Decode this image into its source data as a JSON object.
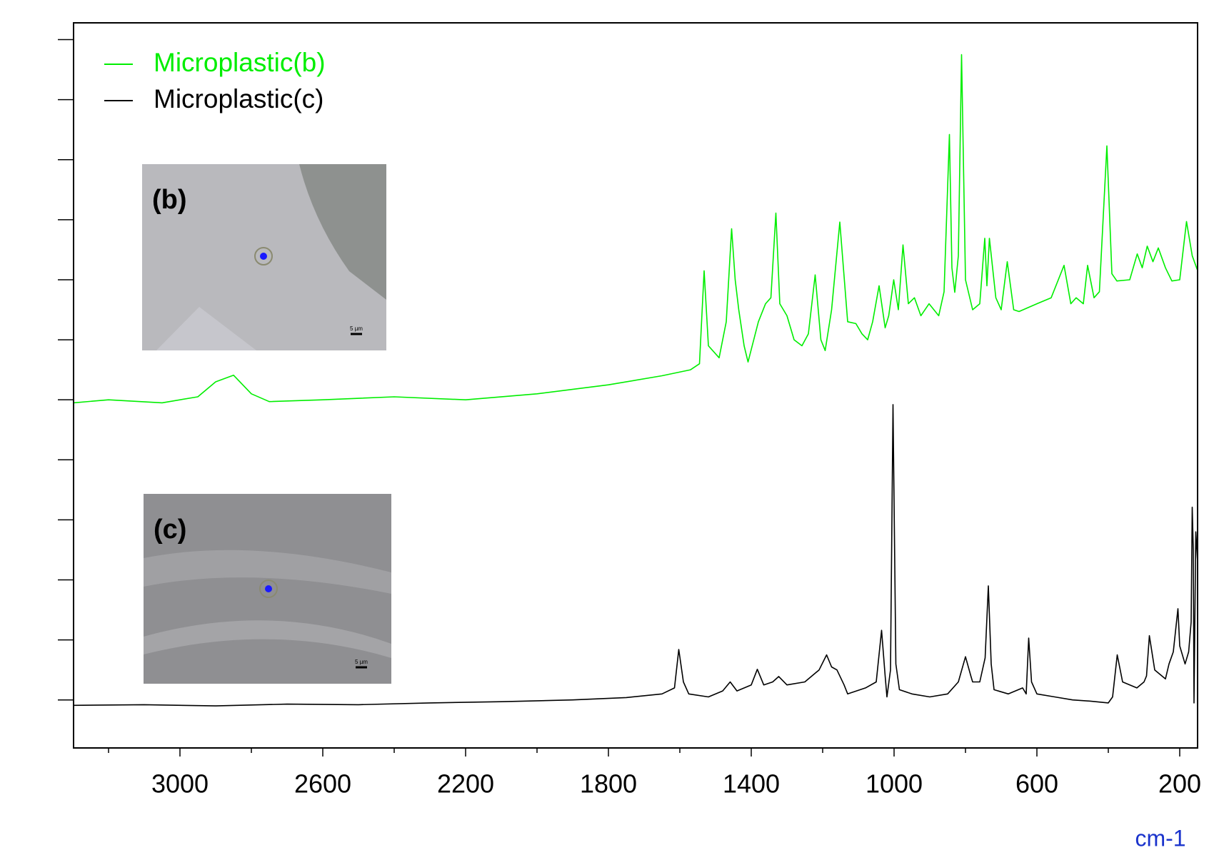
{
  "chart_data": {
    "type": "line",
    "x_label": "cm-1",
    "xlim": [
      3298,
      150
    ],
    "xticks": [
      3000,
      2600,
      2200,
      1800,
      1400,
      1000,
      600,
      200
    ],
    "xminorticks": [
      3200,
      2800,
      2400,
      2000,
      1600,
      1200,
      800,
      400
    ],
    "ylim": [
      0.2,
      12.28
    ],
    "yticks": [
      1,
      2,
      3,
      4,
      5,
      6,
      7,
      8,
      9,
      10,
      11,
      12
    ],
    "legend": "top-left",
    "series": [
      {
        "name": "Microplastic(b)",
        "color": "#00ee00",
        "x": [
          3298,
          3200,
          3050,
          2950,
          2900,
          2850,
          2800,
          2750,
          2600,
          2400,
          2200,
          2000,
          1800,
          1650,
          1570,
          1545,
          1532,
          1520,
          1490,
          1470,
          1455,
          1445,
          1435,
          1420,
          1409,
          1380,
          1360,
          1345,
          1331,
          1320,
          1300,
          1280,
          1258,
          1240,
          1221,
          1205,
          1193,
          1175,
          1152,
          1130,
          1107,
          1090,
          1074,
          1060,
          1042,
          1025,
          1015,
          1001,
          988,
          975,
          960,
          943,
          925,
          902,
          875,
          860,
          845,
          838,
          830,
          820,
          811,
          800,
          780,
          760,
          746,
          740,
          733,
          715,
          700,
          683,
          665,
          650,
          600,
          560,
          524,
          505,
          490,
          470,
          458,
          440,
          425,
          404,
          390,
          376,
          340,
          319,
          305,
          291,
          275,
          260,
          240,
          222,
          200,
          181,
          165,
          151
        ],
        "values": [
          5.95,
          6.0,
          5.95,
          6.05,
          6.3,
          6.41,
          6.1,
          5.97,
          6.0,
          6.05,
          6.0,
          6.1,
          6.25,
          6.4,
          6.5,
          6.6,
          8.15,
          6.9,
          6.7,
          7.3,
          8.85,
          8.0,
          7.5,
          6.9,
          6.63,
          7.3,
          7.6,
          7.7,
          9.11,
          7.6,
          7.4,
          7.0,
          6.9,
          7.1,
          8.08,
          7.0,
          6.82,
          7.5,
          8.96,
          7.3,
          7.27,
          7.1,
          7.0,
          7.3,
          7.9,
          7.2,
          7.4,
          8.0,
          7.5,
          8.58,
          7.6,
          7.7,
          7.4,
          7.6,
          7.4,
          7.8,
          10.42,
          8.2,
          7.79,
          8.4,
          11.75,
          8.0,
          7.5,
          7.6,
          8.69,
          7.9,
          8.69,
          7.7,
          7.5,
          8.3,
          7.5,
          7.47,
          7.6,
          7.7,
          8.24,
          7.6,
          7.7,
          7.6,
          8.24,
          7.7,
          7.8,
          10.23,
          8.1,
          7.98,
          8.0,
          8.43,
          8.2,
          8.56,
          8.3,
          8.53,
          8.2,
          7.98,
          8.0,
          8.97,
          8.4,
          8.17
        ]
      },
      {
        "name": "Microplastic(c)",
        "color": "#000000",
        "x": [
          3298,
          3100,
          2900,
          2700,
          2500,
          2300,
          2100,
          1900,
          1750,
          1650,
          1615,
          1603,
          1590,
          1575,
          1520,
          1480,
          1459,
          1440,
          1400,
          1383,
          1365,
          1340,
          1323,
          1300,
          1250,
          1210,
          1189,
          1175,
          1160,
          1140,
          1130,
          1080,
          1050,
          1035,
          1025,
          1020,
          1010,
          1003,
          995,
          985,
          950,
          900,
          850,
          820,
          800,
          785,
          780,
          760,
          745,
          736,
          728,
          720,
          680,
          640,
          630,
          623,
          615,
          600,
          550,
          500,
          450,
          400,
          388,
          375,
          360,
          320,
          300,
          293,
          285,
          270,
          240,
          230,
          218,
          205,
          200,
          185,
          175,
          168,
          165,
          162,
          160,
          155,
          150
        ],
        "values": [
          0.91,
          0.92,
          0.9,
          0.93,
          0.92,
          0.95,
          0.97,
          1.0,
          1.04,
          1.1,
          1.2,
          1.84,
          1.3,
          1.1,
          1.05,
          1.15,
          1.3,
          1.15,
          1.25,
          1.51,
          1.25,
          1.3,
          1.39,
          1.25,
          1.3,
          1.5,
          1.75,
          1.55,
          1.5,
          1.25,
          1.1,
          1.2,
          1.3,
          2.16,
          1.4,
          1.05,
          1.5,
          5.92,
          1.6,
          1.17,
          1.1,
          1.05,
          1.1,
          1.3,
          1.72,
          1.4,
          1.3,
          1.3,
          1.7,
          2.9,
          1.6,
          1.17,
          1.1,
          1.2,
          1.1,
          2.03,
          1.3,
          1.1,
          1.05,
          1.0,
          0.98,
          0.95,
          1.05,
          1.75,
          1.3,
          1.2,
          1.3,
          1.4,
          2.07,
          1.5,
          1.35,
          1.6,
          1.8,
          2.52,
          1.9,
          1.6,
          1.8,
          2.3,
          4.21,
          3.5,
          0.95,
          3.8,
          3.3
        ]
      }
    ],
    "insets": [
      {
        "label": "(b)",
        "scale": "5 µm"
      },
      {
        "label": "(c)",
        "scale": "5 µm"
      }
    ]
  }
}
